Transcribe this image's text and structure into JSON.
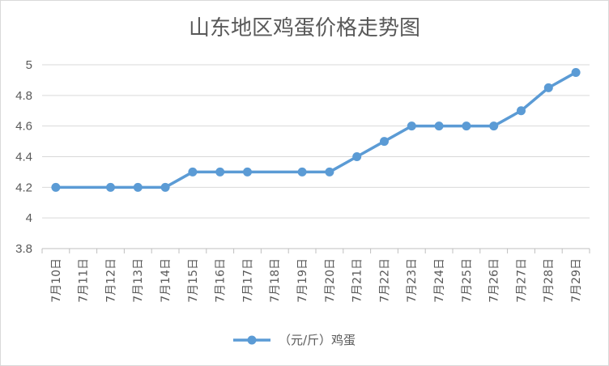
{
  "chart_data": {
    "type": "line",
    "title": "山东地区鸡蛋价格走势图",
    "categories": [
      "7月10日",
      "7月11日",
      "7月12日",
      "7月13日",
      "7月14日",
      "7月15日",
      "7月16日",
      "7月17日",
      "7月18日",
      "7月19日",
      "7月20日",
      "7月21日",
      "7月22日",
      "7月23日",
      "7月24日",
      "7月25日",
      "7月26日",
      "7月27日",
      "7月28日",
      "7月29日"
    ],
    "series": [
      {
        "name": "（元/斤）鸡蛋",
        "color": "#5b9bd5",
        "values": [
          4.2,
          null,
          4.2,
          4.2,
          4.2,
          4.3,
          4.3,
          4.3,
          null,
          4.3,
          4.3,
          4.4,
          4.5,
          4.6,
          4.6,
          4.6,
          4.6,
          4.7,
          4.85,
          4.95
        ]
      }
    ],
    "yticks": [
      "3.8",
      "4",
      "4.2",
      "4.4",
      "4.6",
      "4.8",
      "5"
    ],
    "ylim": [
      3.8,
      5.0
    ],
    "grid": true,
    "legend": "bottom"
  }
}
